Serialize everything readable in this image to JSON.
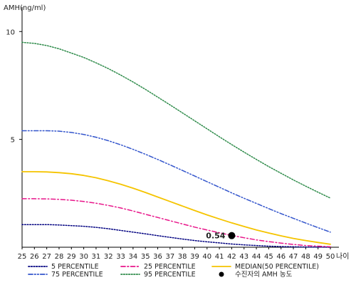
{
  "chart_data": {
    "type": "line",
    "ylabel": "AMH(ng/ml)",
    "xlabel": "나이",
    "x": [
      25,
      26,
      27,
      28,
      29,
      30,
      31,
      32,
      33,
      34,
      35,
      36,
      37,
      38,
      39,
      40,
      41,
      42,
      43,
      44,
      45,
      46,
      47,
      48,
      49,
      50
    ],
    "xlim": [
      25,
      50
    ],
    "ylim": [
      0,
      11
    ],
    "yticks": [
      5,
      10
    ],
    "series": [
      {
        "name": "5 PERCENTILE",
        "color": "#000080",
        "dash": "dotted",
        "values": [
          1.05,
          1.05,
          1.05,
          1.03,
          1.0,
          0.97,
          0.92,
          0.86,
          0.78,
          0.7,
          0.62,
          0.54,
          0.46,
          0.38,
          0.31,
          0.25,
          0.2,
          0.15,
          0.11,
          0.08,
          0.05,
          0.03,
          0.02,
          0.01,
          0.01,
          0.0
        ]
      },
      {
        "name": "25 PERCENTILE",
        "color": "#e8168a",
        "dash": "dashdot",
        "values": [
          2.25,
          2.25,
          2.24,
          2.22,
          2.18,
          2.12,
          2.04,
          1.94,
          1.82,
          1.68,
          1.53,
          1.38,
          1.23,
          1.08,
          0.93,
          0.8,
          0.67,
          0.55,
          0.44,
          0.34,
          0.26,
          0.19,
          0.13,
          0.08,
          0.05,
          0.02
        ]
      },
      {
        "name": "MEDIAN(50 PERCENTILE)",
        "color": "#f5c400",
        "dash": "solid",
        "values": [
          3.5,
          3.5,
          3.49,
          3.46,
          3.41,
          3.33,
          3.22,
          3.08,
          2.92,
          2.74,
          2.54,
          2.33,
          2.12,
          1.91,
          1.7,
          1.5,
          1.31,
          1.13,
          0.96,
          0.8,
          0.66,
          0.53,
          0.41,
          0.31,
          0.22,
          0.14
        ]
      },
      {
        "name": "75 PERCENTILE",
        "color": "#3355cc",
        "dash": "dashdotdot",
        "values": [
          5.4,
          5.4,
          5.4,
          5.38,
          5.32,
          5.23,
          5.1,
          4.94,
          4.75,
          4.54,
          4.31,
          4.07,
          3.82,
          3.56,
          3.3,
          3.04,
          2.78,
          2.52,
          2.27,
          2.03,
          1.79,
          1.56,
          1.34,
          1.12,
          0.91,
          0.7
        ]
      },
      {
        "name": "95 PERCENTILE",
        "color": "#2e8b4a",
        "dash": "dotted",
        "values": [
          9.5,
          9.45,
          9.35,
          9.2,
          9.0,
          8.8,
          8.55,
          8.28,
          7.98,
          7.66,
          7.32,
          6.96,
          6.6,
          6.23,
          5.86,
          5.49,
          5.12,
          4.76,
          4.41,
          4.07,
          3.74,
          3.43,
          3.12,
          2.83,
          2.55,
          2.28
        ]
      }
    ],
    "marker": {
      "label": "수진자의 AMH 농도",
      "x": 42,
      "y": 0.54,
      "text": "0.54",
      "color": "#000000"
    },
    "legend": {
      "position": "bottom"
    }
  }
}
